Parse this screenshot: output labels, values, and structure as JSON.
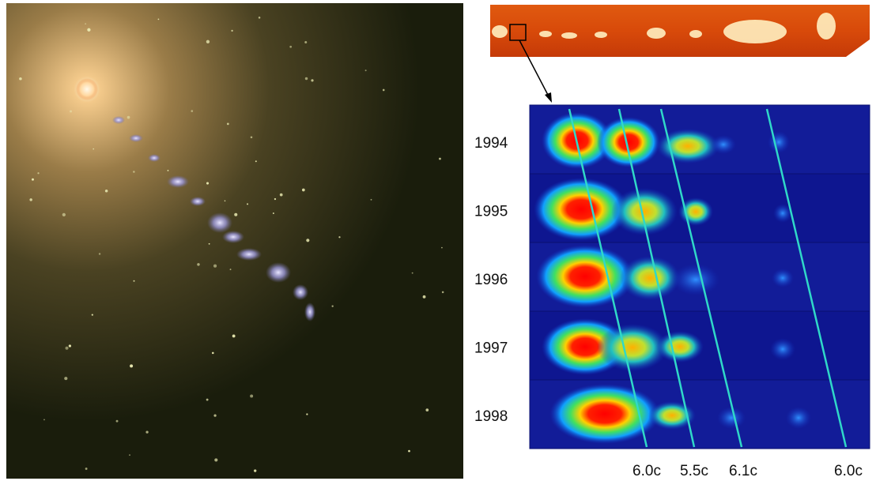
{
  "epochs": [
    "1994",
    "1995",
    "1996",
    "1997",
    "1998"
  ],
  "speed_labels": [
    "6.0c",
    "5.5c",
    "6.1c",
    "6.0c"
  ]
}
